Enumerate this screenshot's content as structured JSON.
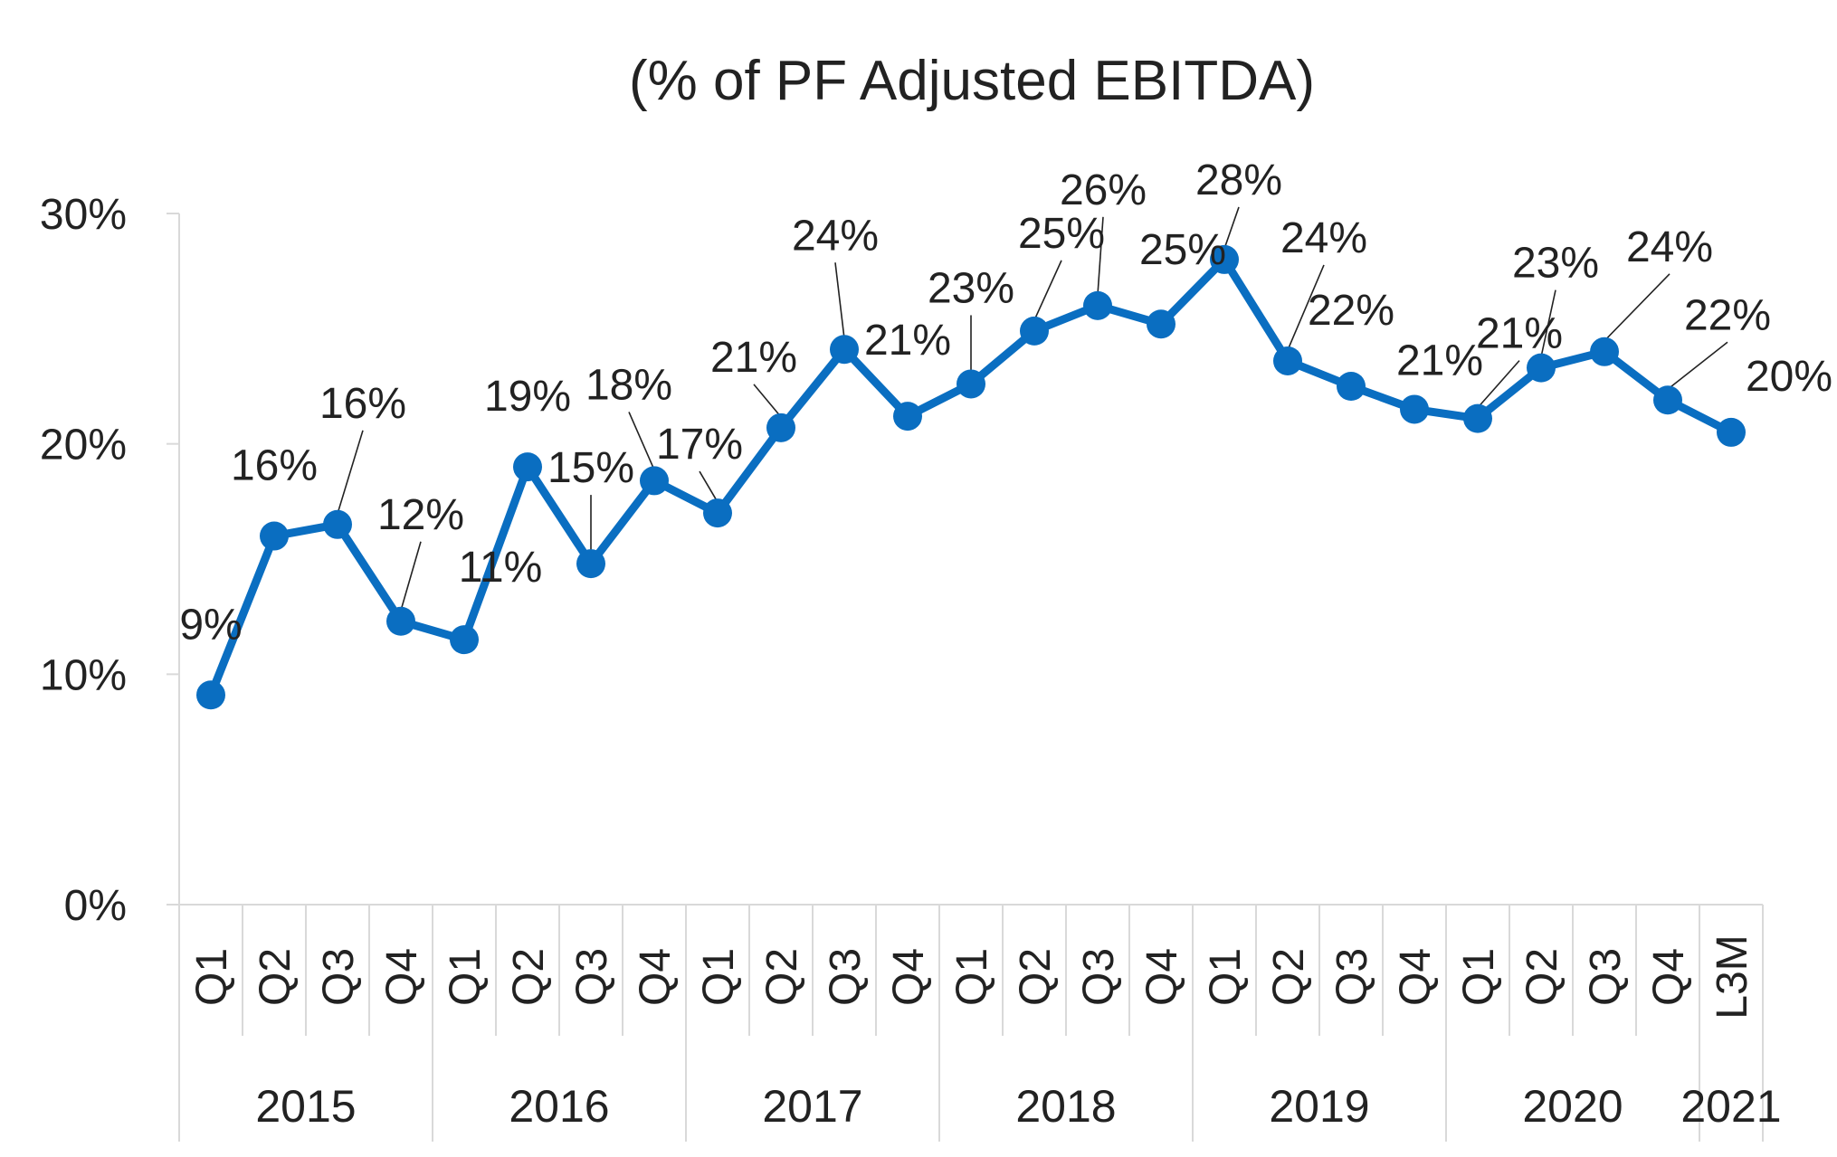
{
  "chart_data": {
    "type": "line",
    "title": "(% of PF Adjusted EBITDA)",
    "xlabel": "",
    "ylabel": "",
    "ylim": [
      0,
      30
    ],
    "yticks": [
      "0%",
      "10%",
      "20%",
      "30%"
    ],
    "ytick_values": [
      0,
      10,
      20,
      30
    ],
    "grid": false,
    "legend": "none",
    "categories": [
      "Q1",
      "Q2",
      "Q3",
      "Q4",
      "Q1",
      "Q2",
      "Q3",
      "Q4",
      "Q1",
      "Q2",
      "Q3",
      "Q4",
      "Q1",
      "Q2",
      "Q3",
      "Q4",
      "Q1",
      "Q2",
      "Q3",
      "Q4",
      "Q1",
      "Q2",
      "Q3",
      "Q4",
      "L3M"
    ],
    "year_groups": [
      {
        "label": "2015",
        "count": 4
      },
      {
        "label": "2016",
        "count": 4
      },
      {
        "label": "2017",
        "count": 4
      },
      {
        "label": "2018",
        "count": 4
      },
      {
        "label": "2019",
        "count": 4
      },
      {
        "label": "2020",
        "count": 4
      },
      {
        "label": "2021",
        "count": 1
      }
    ],
    "series": [
      {
        "values": [
          9.1,
          16.0,
          16.5,
          12.3,
          11.5,
          19.0,
          14.8,
          18.4,
          17.0,
          20.7,
          24.1,
          21.2,
          22.6,
          24.9,
          26.0,
          25.2,
          28.0,
          23.6,
          22.5,
          21.5,
          21.1,
          23.3,
          24.0,
          21.9,
          20.5
        ],
        "labels": [
          "9%",
          "16%",
          "16%",
          "12%",
          "11%",
          "19%",
          "15%",
          "18%",
          "17%",
          "21%",
          "24%",
          "21%",
          "23%",
          "25%",
          "26%",
          "25%",
          "28%",
          "24%",
          "22%",
          "21%",
          "21%",
          "23%",
          "24%",
          "22%",
          "20%"
        ]
      }
    ],
    "colors": {
      "line": "#0A6EC1",
      "axis": "#D9D9D9",
      "text": "#222222",
      "leader": "#222222"
    }
  }
}
